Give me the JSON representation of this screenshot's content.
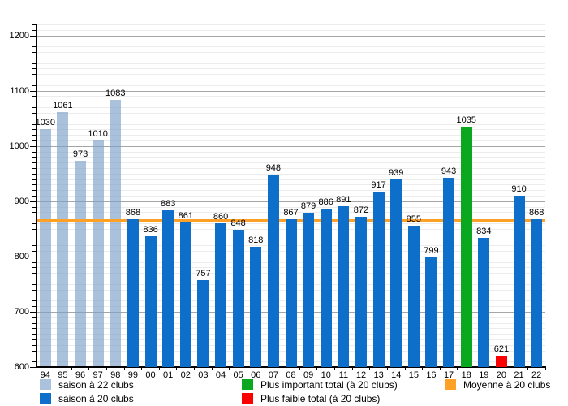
{
  "legend": {
    "items": [
      {
        "label": "saison à 22 clubs",
        "color": "#aac2db"
      },
      {
        "label": "saison à 20 clubs",
        "color": "#0d6fc9"
      },
      {
        "label": "Plus important total (à 20 clubs)",
        "color": "#0aa81e"
      },
      {
        "label": "Plus faible total (à 20 clubs)",
        "color": "#fb0000"
      },
      {
        "label": "Moyenne à 20 clubs",
        "color": "#ffa126"
      }
    ]
  },
  "chart_data": {
    "type": "bar",
    "title": "",
    "xlabel": "",
    "ylabel": "",
    "ylim": [
      600,
      1220
    ],
    "y_major_step": 100,
    "y_minor_step": 10,
    "y_tick_labels": [
      600,
      700,
      800,
      900,
      1000,
      1100,
      1200
    ],
    "grid": "horizontal, minor every 10 and major every 100",
    "legend_position": "bottom",
    "categories": [
      "94",
      "95",
      "96",
      "97",
      "98",
      "99",
      "00",
      "01",
      "02",
      "03",
      "04",
      "05",
      "06",
      "07",
      "08",
      "09",
      "10",
      "11",
      "12",
      "13",
      "14",
      "15",
      "16",
      "17",
      "18",
      "19",
      "20",
      "21",
      "22"
    ],
    "values": [
      1030,
      1061,
      973,
      1010,
      1083,
      868,
      836,
      883,
      861,
      757,
      860,
      848,
      818,
      948,
      867,
      879,
      886,
      891,
      872,
      917,
      939,
      855,
      799,
      943,
      1035,
      834,
      621,
      910,
      868
    ],
    "groups": [
      "g22",
      "g22",
      "g22",
      "g22",
      "g22",
      "g20",
      "g20",
      "g20",
      "g20",
      "g20",
      "g20",
      "g20",
      "g20",
      "g20",
      "g20",
      "g20",
      "g20",
      "g20",
      "g20",
      "g20",
      "g20",
      "g20",
      "g20",
      "g20",
      "gmax",
      "g20",
      "gmin",
      "g20",
      "g20"
    ],
    "group_colors": {
      "g22": "rgba(125,160,200,0.65)",
      "g20": "#0d6fc9",
      "gmax": "#0aa81e",
      "gmin": "#fb0000"
    },
    "moyenne_line": 866.5,
    "moyenne_color": "#ffa126"
  }
}
